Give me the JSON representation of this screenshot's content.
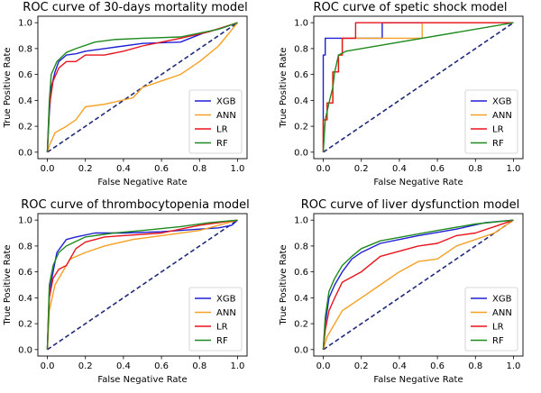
{
  "colors": {
    "XGB": "#1f1fd6",
    "ANN": "#f5a023",
    "LR": "#e8141c",
    "RF": "#1f8a1f",
    "diagonal": "#1f2a7a"
  },
  "chart_data": [
    {
      "type": "line",
      "title": "ROC curve of 30-days mortality model",
      "xlabel": "False Negative Rate",
      "ylabel": "True Positive Rate",
      "xlim": [
        0,
        1
      ],
      "ylim": [
        0,
        1
      ],
      "xticks": [
        "0.0",
        "0.2",
        "0.4",
        "0.6",
        "0.8",
        "1.0"
      ],
      "yticks": [
        "0.0",
        "0.2",
        "0.4",
        "0.6",
        "0.8",
        "1.0"
      ],
      "grid": false,
      "legend": "lower-right",
      "diagonal": true,
      "series": [
        {
          "name": "XGB",
          "points": [
            [
              0,
              0
            ],
            [
              0.01,
              0.3
            ],
            [
              0.02,
              0.5
            ],
            [
              0.04,
              0.62
            ],
            [
              0.06,
              0.7
            ],
            [
              0.1,
              0.75
            ],
            [
              0.15,
              0.76
            ],
            [
              0.2,
              0.78
            ],
            [
              0.3,
              0.8
            ],
            [
              0.5,
              0.84
            ],
            [
              0.7,
              0.85
            ],
            [
              0.82,
              0.92
            ],
            [
              0.92,
              0.96
            ],
            [
              1,
              1
            ]
          ]
        },
        {
          "name": "ANN",
          "points": [
            [
              0,
              0
            ],
            [
              0.01,
              0.05
            ],
            [
              0.04,
              0.15
            ],
            [
              0.1,
              0.2
            ],
            [
              0.15,
              0.25
            ],
            [
              0.2,
              0.35
            ],
            [
              0.3,
              0.37
            ],
            [
              0.45,
              0.42
            ],
            [
              0.5,
              0.5
            ],
            [
              0.6,
              0.55
            ],
            [
              0.7,
              0.6
            ],
            [
              0.8,
              0.7
            ],
            [
              0.9,
              0.82
            ],
            [
              1,
              1
            ]
          ]
        },
        {
          "name": "LR",
          "points": [
            [
              0,
              0
            ],
            [
              0.01,
              0.35
            ],
            [
              0.03,
              0.55
            ],
            [
              0.06,
              0.65
            ],
            [
              0.1,
              0.7
            ],
            [
              0.15,
              0.7
            ],
            [
              0.2,
              0.75
            ],
            [
              0.3,
              0.75
            ],
            [
              0.4,
              0.78
            ],
            [
              0.5,
              0.82
            ],
            [
              0.6,
              0.85
            ],
            [
              0.7,
              0.88
            ],
            [
              0.85,
              0.93
            ],
            [
              1,
              1
            ]
          ]
        },
        {
          "name": "RF",
          "points": [
            [
              0,
              0
            ],
            [
              0.01,
              0.4
            ],
            [
              0.02,
              0.6
            ],
            [
              0.05,
              0.7
            ],
            [
              0.1,
              0.77
            ],
            [
              0.15,
              0.8
            ],
            [
              0.25,
              0.85
            ],
            [
              0.35,
              0.87
            ],
            [
              0.5,
              0.88
            ],
            [
              0.7,
              0.89
            ],
            [
              0.9,
              0.95
            ],
            [
              1,
              1
            ]
          ]
        }
      ]
    },
    {
      "type": "line",
      "title": "ROC curve of spetic shock model",
      "xlabel": "False Negative Rate",
      "ylabel": "True Positive Rate",
      "xlim": [
        0,
        1
      ],
      "ylim": [
        0,
        1
      ],
      "xticks": [
        "0.0",
        "0.2",
        "0.4",
        "0.6",
        "0.8",
        "1.0"
      ],
      "yticks": [
        "0.0",
        "0.2",
        "0.4",
        "0.6",
        "0.8",
        "1.0"
      ],
      "grid": false,
      "legend": "lower-right",
      "diagonal": true,
      "series": [
        {
          "name": "XGB",
          "points": [
            [
              0,
              0
            ],
            [
              0,
              0.75
            ],
            [
              0.01,
              0.75
            ],
            [
              0.01,
              0.88
            ],
            [
              0.31,
              0.88
            ],
            [
              0.31,
              1
            ],
            [
              1,
              1
            ]
          ]
        },
        {
          "name": "ANN",
          "points": [
            [
              0,
              0
            ],
            [
              0,
              0.25
            ],
            [
              0.02,
              0.25
            ],
            [
              0.02,
              0.38
            ],
            [
              0.05,
              0.38
            ],
            [
              0.05,
              0.62
            ],
            [
              0.08,
              0.62
            ],
            [
              0.08,
              0.75
            ],
            [
              0.1,
              0.75
            ],
            [
              0.1,
              0.88
            ],
            [
              0.52,
              0.88
            ],
            [
              0.52,
              1
            ],
            [
              1,
              1
            ]
          ]
        },
        {
          "name": "LR",
          "points": [
            [
              0,
              0
            ],
            [
              0,
              0.25
            ],
            [
              0.02,
              0.25
            ],
            [
              0.02,
              0.38
            ],
            [
              0.05,
              0.38
            ],
            [
              0.05,
              0.62
            ],
            [
              0.08,
              0.62
            ],
            [
              0.08,
              0.75
            ],
            [
              0.1,
              0.75
            ],
            [
              0.1,
              0.88
            ],
            [
              0.17,
              0.88
            ],
            [
              0.17,
              1
            ],
            [
              1,
              1
            ]
          ]
        },
        {
          "name": "RF",
          "points": [
            [
              0,
              0
            ],
            [
              0.01,
              0.25
            ],
            [
              0.03,
              0.38
            ],
            [
              0.05,
              0.5
            ],
            [
              0.06,
              0.62
            ],
            [
              0.08,
              0.75
            ],
            [
              0.12,
              0.78
            ],
            [
              0.2,
              0.8
            ],
            [
              1,
              1
            ]
          ]
        }
      ]
    },
    {
      "type": "line",
      "title": "ROC curve of thrombocytopenia model",
      "xlabel": "False Negative Rate",
      "ylabel": "True Positive Rate",
      "xlim": [
        0,
        1
      ],
      "ylim": [
        0,
        1
      ],
      "xticks": [
        "0.0",
        "0.2",
        "0.4",
        "0.6",
        "0.8",
        "1.0"
      ],
      "yticks": [
        "0.0",
        "0.2",
        "0.4",
        "0.6",
        "0.8",
        "1.0"
      ],
      "grid": false,
      "legend": "lower-right",
      "diagonal": true,
      "series": [
        {
          "name": "XGB",
          "points": [
            [
              0,
              0
            ],
            [
              0.01,
              0.45
            ],
            [
              0.03,
              0.6
            ],
            [
              0.05,
              0.75
            ],
            [
              0.1,
              0.85
            ],
            [
              0.15,
              0.87
            ],
            [
              0.25,
              0.9
            ],
            [
              0.4,
              0.9
            ],
            [
              0.6,
              0.91
            ],
            [
              0.8,
              0.93
            ],
            [
              0.9,
              0.94
            ],
            [
              0.97,
              0.96
            ],
            [
              1,
              1
            ]
          ]
        },
        {
          "name": "ANN",
          "points": [
            [
              0,
              0
            ],
            [
              0.01,
              0.3
            ],
            [
              0.04,
              0.5
            ],
            [
              0.08,
              0.6
            ],
            [
              0.12,
              0.7
            ],
            [
              0.2,
              0.75
            ],
            [
              0.3,
              0.8
            ],
            [
              0.45,
              0.85
            ],
            [
              0.6,
              0.88
            ],
            [
              0.8,
              0.92
            ],
            [
              0.9,
              0.96
            ],
            [
              1,
              1
            ]
          ]
        },
        {
          "name": "LR",
          "points": [
            [
              0,
              0
            ],
            [
              0.01,
              0.4
            ],
            [
              0.03,
              0.55
            ],
            [
              0.06,
              0.62
            ],
            [
              0.1,
              0.65
            ],
            [
              0.15,
              0.78
            ],
            [
              0.2,
              0.83
            ],
            [
              0.3,
              0.87
            ],
            [
              0.4,
              0.88
            ],
            [
              0.6,
              0.9
            ],
            [
              0.8,
              0.96
            ],
            [
              1,
              1
            ]
          ]
        },
        {
          "name": "RF",
          "points": [
            [
              0,
              0
            ],
            [
              0.01,
              0.5
            ],
            [
              0.03,
              0.65
            ],
            [
              0.06,
              0.75
            ],
            [
              0.1,
              0.8
            ],
            [
              0.2,
              0.87
            ],
            [
              0.35,
              0.9
            ],
            [
              0.5,
              0.92
            ],
            [
              0.7,
              0.95
            ],
            [
              0.85,
              0.98
            ],
            [
              1,
              1
            ]
          ]
        }
      ]
    },
    {
      "type": "line",
      "title": "ROC curve of liver dysfunction model",
      "xlabel": "False Negative Rate",
      "ylabel": "True Positive Rate",
      "xlim": [
        0,
        1
      ],
      "ylim": [
        0,
        1
      ],
      "xticks": [
        "0.0",
        "0.2",
        "0.4",
        "0.6",
        "0.8",
        "1.0"
      ],
      "yticks": [
        "0.0",
        "0.2",
        "0.4",
        "0.6",
        "0.8",
        "1.0"
      ],
      "grid": false,
      "legend": "lower-right",
      "diagonal": true,
      "series": [
        {
          "name": "XGB",
          "points": [
            [
              0,
              0
            ],
            [
              0.01,
              0.2
            ],
            [
              0.03,
              0.4
            ],
            [
              0.06,
              0.5
            ],
            [
              0.1,
              0.6
            ],
            [
              0.15,
              0.7
            ],
            [
              0.2,
              0.75
            ],
            [
              0.3,
              0.82
            ],
            [
              0.4,
              0.85
            ],
            [
              0.5,
              0.88
            ],
            [
              0.7,
              0.93
            ],
            [
              0.85,
              0.98
            ],
            [
              1,
              1
            ]
          ]
        },
        {
          "name": "ANN",
          "points": [
            [
              0,
              0
            ],
            [
              0.02,
              0.1
            ],
            [
              0.06,
              0.2
            ],
            [
              0.1,
              0.3
            ],
            [
              0.2,
              0.4
            ],
            [
              0.3,
              0.5
            ],
            [
              0.4,
              0.6
            ],
            [
              0.5,
              0.68
            ],
            [
              0.6,
              0.7
            ],
            [
              0.7,
              0.8
            ],
            [
              0.8,
              0.85
            ],
            [
              0.9,
              0.9
            ],
            [
              1,
              1
            ]
          ]
        },
        {
          "name": "LR",
          "points": [
            [
              0,
              0
            ],
            [
              0.01,
              0.15
            ],
            [
              0.03,
              0.3
            ],
            [
              0.06,
              0.4
            ],
            [
              0.1,
              0.52
            ],
            [
              0.2,
              0.6
            ],
            [
              0.3,
              0.72
            ],
            [
              0.5,
              0.8
            ],
            [
              0.6,
              0.82
            ],
            [
              0.7,
              0.88
            ],
            [
              0.8,
              0.9
            ],
            [
              0.9,
              0.95
            ],
            [
              1,
              1
            ]
          ]
        },
        {
          "name": "RF",
          "points": [
            [
              0,
              0
            ],
            [
              0.01,
              0.25
            ],
            [
              0.03,
              0.45
            ],
            [
              0.06,
              0.55
            ],
            [
              0.1,
              0.65
            ],
            [
              0.15,
              0.72
            ],
            [
              0.2,
              0.78
            ],
            [
              0.3,
              0.84
            ],
            [
              0.45,
              0.88
            ],
            [
              0.6,
              0.92
            ],
            [
              0.8,
              0.97
            ],
            [
              1,
              1
            ]
          ]
        }
      ]
    }
  ]
}
